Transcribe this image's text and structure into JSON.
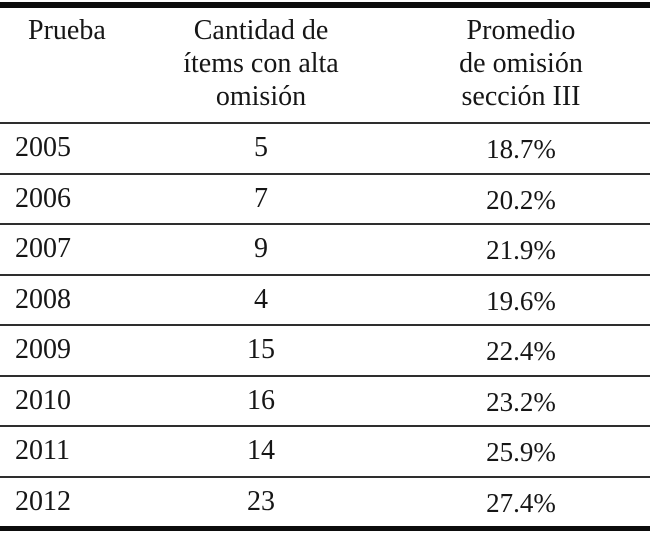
{
  "colors": {
    "background": "#ffffff",
    "text": "#161616",
    "thick_rule": "#0c0c0c",
    "thin_rule": "#2e2e2e"
  },
  "table": {
    "headers": [
      {
        "id": "prueba",
        "label": "Prueba"
      },
      {
        "id": "items",
        "label": "Cantidad de\nítems con alta\nomisión"
      },
      {
        "id": "promedio",
        "label": "Promedio\nde omisión\nsección III"
      }
    ],
    "rows": [
      {
        "year": "2005",
        "count": "5",
        "avg": "18.7%"
      },
      {
        "year": "2006",
        "count": "7",
        "avg": "20.2%"
      },
      {
        "year": "2007",
        "count": "9",
        "avg": "21.9%"
      },
      {
        "year": "2008",
        "count": "4",
        "avg": "19.6%"
      },
      {
        "year": "2009",
        "count": "15",
        "avg": "22.4%"
      },
      {
        "year": "2010",
        "count": "16",
        "avg": "23.2%"
      },
      {
        "year": "2011",
        "count": "14",
        "avg": "25.9%"
      },
      {
        "year": "2012",
        "count": "23",
        "avg": "27.4%"
      }
    ]
  },
  "chart_data": {
    "type": "table",
    "title": "",
    "columns": [
      "Prueba",
      "Cantidad de ítems con alta omisión",
      "Promedio de omisión sección III"
    ],
    "rows": [
      [
        "2005",
        5,
        "18.7%"
      ],
      [
        "2006",
        7,
        "20.2%"
      ],
      [
        "2007",
        9,
        "21.9%"
      ],
      [
        "2008",
        4,
        "19.6%"
      ],
      [
        "2009",
        15,
        "22.4%"
      ],
      [
        "2010",
        16,
        "23.2%"
      ],
      [
        "2011",
        14,
        "25.9%"
      ],
      [
        "2012",
        23,
        "27.4%"
      ]
    ],
    "series": [
      {
        "name": "Cantidad de ítems con alta omisión",
        "values": [
          5,
          7,
          9,
          4,
          15,
          16,
          14,
          23
        ]
      },
      {
        "name": "Promedio de omisión sección III (%)",
        "values": [
          18.7,
          20.2,
          21.9,
          19.6,
          22.4,
          23.2,
          25.9,
          27.4
        ]
      }
    ],
    "x": [
      "2005",
      "2006",
      "2007",
      "2008",
      "2009",
      "2010",
      "2011",
      "2012"
    ]
  }
}
